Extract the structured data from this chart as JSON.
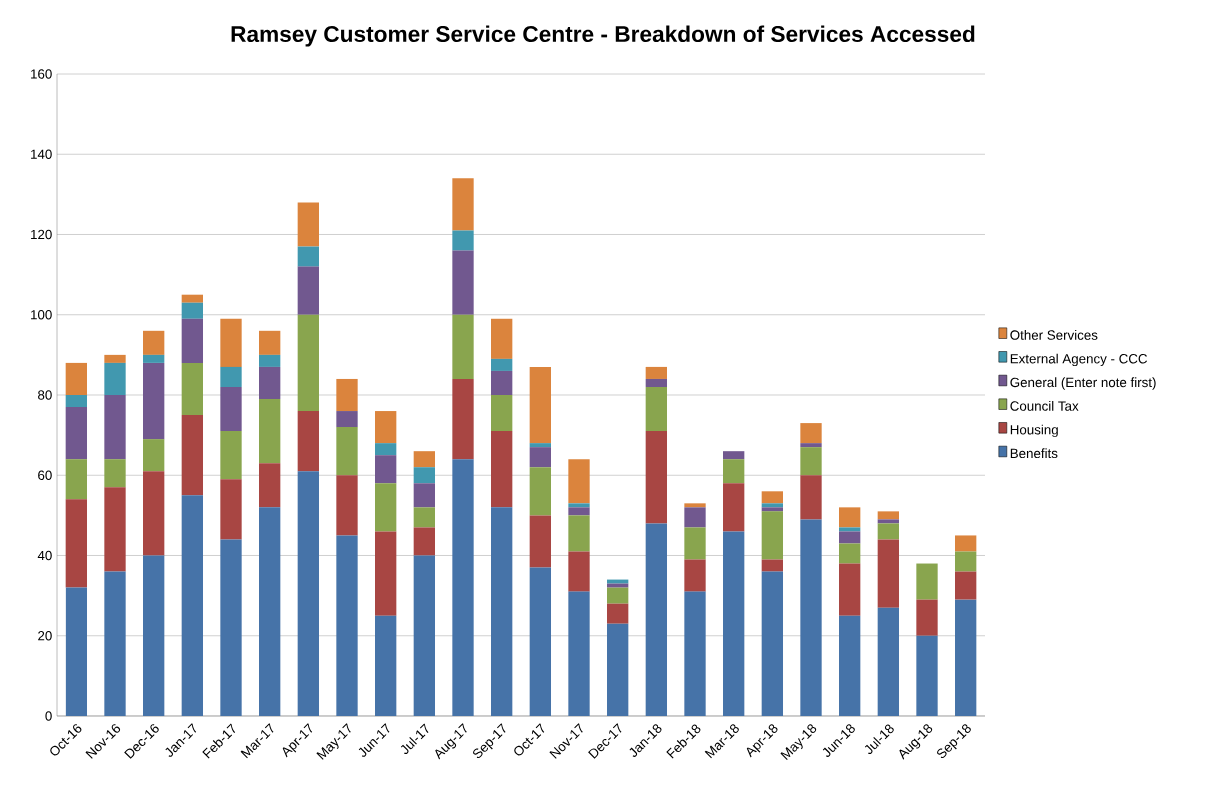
{
  "chart_data": {
    "type": "bar",
    "title": "Ramsey Customer Service Centre - Breakdown of Services Accessed",
    "categories": [
      "Oct-16",
      "Nov-16",
      "Dec-16",
      "Jan-17",
      "Feb-17",
      "Mar-17",
      "Apr-17",
      "May-17",
      "Jun-17",
      "Jul-17",
      "Aug-17",
      "Sep-17",
      "Oct-17",
      "Nov-17",
      "Dec-17",
      "Jan-18",
      "Feb-18",
      "Mar-18",
      "Apr-18",
      "May-18",
      "Jun-18",
      "Jul-18",
      "Aug-18",
      "Sep-18"
    ],
    "stacked": true,
    "series": [
      {
        "name": "Benefits",
        "color": "#4673a8",
        "values": [
          32,
          36,
          40,
          55,
          44,
          52,
          61,
          45,
          25,
          40,
          64,
          52,
          37,
          31,
          23,
          48,
          31,
          46,
          36,
          49,
          25,
          27,
          20,
          29
        ]
      },
      {
        "name": "Housing",
        "color": "#a84643",
        "values": [
          22,
          21,
          21,
          20,
          15,
          11,
          15,
          15,
          21,
          7,
          20,
          19,
          13,
          10,
          5,
          23,
          8,
          12,
          3,
          11,
          13,
          17,
          9,
          7
        ]
      },
      {
        "name": "Council Tax",
        "color": "#89a54e",
        "values": [
          10,
          7,
          8,
          13,
          12,
          16,
          24,
          12,
          12,
          5,
          16,
          9,
          12,
          9,
          4,
          11,
          8,
          6,
          12,
          7,
          5,
          4,
          9,
          5
        ]
      },
      {
        "name": "General (Enter note first)",
        "color": "#71588f",
        "values": [
          13,
          16,
          19,
          11,
          11,
          8,
          12,
          4,
          7,
          6,
          16,
          6,
          5,
          2,
          1,
          2,
          5,
          2,
          1,
          1,
          3,
          1,
          0,
          0
        ]
      },
      {
        "name": "External Agency - CCC",
        "color": "#4198af",
        "values": [
          3,
          8,
          2,
          4,
          5,
          3,
          5,
          0,
          3,
          4,
          5,
          3,
          1,
          1,
          1,
          0,
          0,
          0,
          1,
          0,
          1,
          0,
          0,
          0
        ]
      },
      {
        "name": "Other Services",
        "color": "#db843d",
        "values": [
          8,
          2,
          6,
          2,
          12,
          6,
          11,
          8,
          8,
          4,
          13,
          10,
          19,
          11,
          0,
          3,
          1,
          0,
          3,
          5,
          5,
          2,
          0,
          4
        ]
      }
    ],
    "ylim": [
      0,
      160
    ],
    "yticks": [
      0,
      20,
      40,
      60,
      80,
      100,
      120,
      140,
      160
    ],
    "grid": "y",
    "legend": "right"
  }
}
